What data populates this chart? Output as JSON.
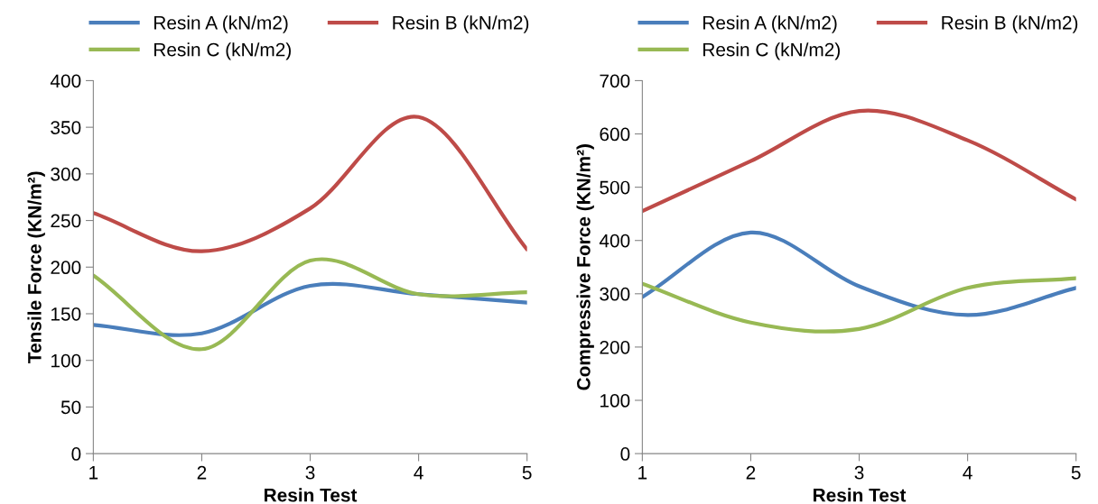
{
  "chart_data": [
    {
      "type": "line",
      "xlabel": "Resin Test",
      "ylabel": "Tensile Force (KN/m²)",
      "x": [
        1,
        2,
        3,
        4,
        5
      ],
      "xlim": [
        1,
        5
      ],
      "xticks": [
        1,
        2,
        3,
        4,
        5
      ],
      "ylim": [
        0,
        400
      ],
      "yticks": [
        0,
        50,
        100,
        150,
        200,
        250,
        300,
        350,
        400
      ],
      "grid": false,
      "legend": "top",
      "marker": "none",
      "series": [
        {
          "name": "Resin A (kN/m2)",
          "color": "#4a7ebb",
          "values": [
            138,
            129,
            180,
            171,
            162
          ]
        },
        {
          "name": "Resin B (kN/m2)",
          "color": "#be4b48",
          "values": [
            258,
            217,
            263,
            361,
            219
          ]
        },
        {
          "name": "Resin C (kN/m2)",
          "color": "#98b954",
          "values": [
            191,
            112,
            207,
            171,
            173
          ]
        }
      ]
    },
    {
      "type": "line",
      "xlabel": "Resin Test",
      "ylabel": "Compressive Force (KN/m²)",
      "x": [
        1,
        2,
        3,
        4,
        5
      ],
      "xlim": [
        1,
        5
      ],
      "xticks": [
        1,
        2,
        3,
        4,
        5
      ],
      "ylim": [
        0,
        700
      ],
      "yticks": [
        0,
        100,
        200,
        300,
        400,
        500,
        600,
        700
      ],
      "grid": false,
      "legend": "top",
      "marker": "none",
      "series": [
        {
          "name": "Resin A (kN/m2)",
          "color": "#4a7ebb",
          "values": [
            294,
            415,
            314,
            260,
            311
          ]
        },
        {
          "name": "Resin B (kN/m2)",
          "color": "#be4b48",
          "values": [
            455,
            549,
            643,
            588,
            477
          ]
        },
        {
          "name": "Resin C (kN/m2)",
          "color": "#98b954",
          "values": [
            319,
            246,
            234,
            311,
            329
          ]
        }
      ]
    }
  ]
}
